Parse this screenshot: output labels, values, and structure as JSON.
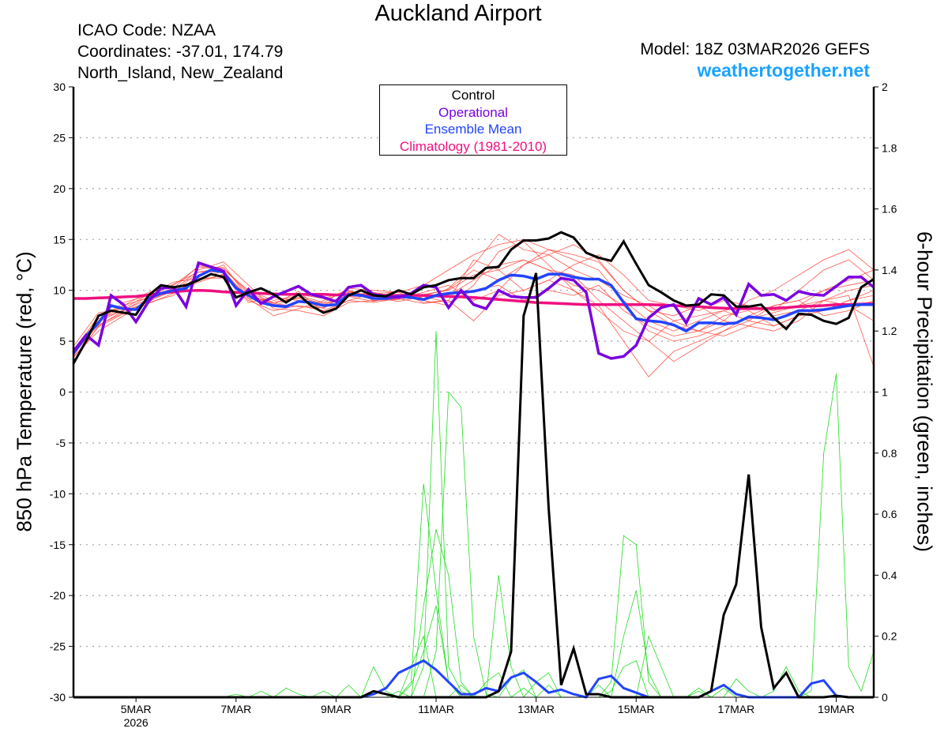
{
  "header": {
    "title": "Auckland Airport",
    "icao": "ICAO Code: NZAA",
    "coordinates": "Coordinates: -37.01, 174.79",
    "region": "North_Island, New_Zealand",
    "model": "Model: 18Z 03MAR2026 GEFS",
    "site": "weathertogether.net"
  },
  "colors": {
    "control": "#000000",
    "operational": "#7a00e0",
    "ensemble_mean": "#2244ff",
    "climatology": "#f0107f",
    "temp_members": "#ff3b30",
    "precip_members": "#22dd22",
    "site": "#1aa3ff"
  },
  "chart_data": {
    "type": "line",
    "title": "Auckland Airport",
    "xlabel": "",
    "ylabel": "850 hPa Temperature (red, °C)",
    "y2label": "6-hour Precipitation (green, inches)",
    "start": "03MAR2026 18Z",
    "step_hours": 6,
    "steps": 65,
    "ylim": [
      -30,
      30
    ],
    "y2lim": [
      0,
      2
    ],
    "yticks": [
      "30",
      "25",
      "20",
      "15",
      "10",
      "5",
      "0",
      "-5",
      "-10",
      "-15",
      "-20",
      "-25",
      "-30"
    ],
    "y2ticks": [
      "2",
      "1.8",
      "1.6",
      "1.4",
      "1.2",
      "1",
      "0.8",
      "0.6",
      "0.4",
      "0.2",
      "0"
    ],
    "xticks": [
      {
        "step": 5,
        "label": "5MAR",
        "sub": "2026"
      },
      {
        "step": 13,
        "label": "7MAR"
      },
      {
        "step": 21,
        "label": "9MAR"
      },
      {
        "step": 29,
        "label": "11MAR"
      },
      {
        "step": 37,
        "label": "13MAR"
      },
      {
        "step": 45,
        "label": "15MAR"
      },
      {
        "step": 53,
        "label": "17MAR"
      },
      {
        "step": 61,
        "label": "19MAR"
      }
    ],
    "grid": "horizontal dotted",
    "legend": {
      "placement": "top-center",
      "entries": [
        "Control",
        "Operational",
        "Ensemble Mean",
        "Climatology (1981-2010)"
      ]
    },
    "temperature": {
      "control": [
        2.8,
        5,
        7.5,
        8,
        7.8,
        7.6,
        9.5,
        10.5,
        10.3,
        10.5,
        11,
        11.6,
        11.3,
        9.3,
        9.8,
        10.2,
        9.6,
        8.8,
        9.6,
        8.5,
        7.8,
        8.2,
        9.5,
        10,
        9.5,
        9.4,
        10,
        9.6,
        10.3,
        10.5,
        11,
        11.2,
        11.2,
        12.2,
        12.3,
        14,
        14.9,
        14.9,
        15.1,
        15.7,
        15.2,
        13.7,
        13.2,
        12.9,
        14.8,
        12.6,
        10.5,
        9.8,
        9,
        8.5,
        8.6,
        9.6,
        9.5,
        8.4,
        8.4,
        8.6,
        7.3,
        6.2,
        7.7,
        7.6,
        7,
        6.7,
        7.3,
        10.3,
        11.1
      ],
      "operational": [
        4,
        5.6,
        4.6,
        9.5,
        8.6,
        6.9,
        8.9,
        10.2,
        10.3,
        8.4,
        12.7,
        12.3,
        11.9,
        8.5,
        10.1,
        8.7,
        9.4,
        9.9,
        10.4,
        9.6,
        9.3,
        8.9,
        10.3,
        10.5,
        9.6,
        9.4,
        9.3,
        9.7,
        10.5,
        10.3,
        8.3,
        10,
        8.6,
        8.2,
        10,
        9.4,
        9.3,
        9.3,
        10.2,
        11.2,
        11,
        9.8,
        3.8,
        3.3,
        3.5,
        4.6,
        7.3,
        8.3,
        8.6,
        6.8,
        9.2,
        8.6,
        9.3,
        7.6,
        10.6,
        9.5,
        9.6,
        9,
        9.9,
        9.6,
        9.5,
        10.4,
        11.3,
        11.3,
        10.3
      ],
      "ensemble_mean": [
        3.8,
        5.5,
        6.8,
        8.5,
        8.2,
        8.1,
        9.2,
        9.7,
        10,
        10.2,
        11.4,
        12,
        11.8,
        10.2,
        9.5,
        8.8,
        8.5,
        8.4,
        8.9,
        8.8,
        8.5,
        8.6,
        9.6,
        9.5,
        9.2,
        9.2,
        9.4,
        9.3,
        9.1,
        9.5,
        9.7,
        9.8,
        9.9,
        10.2,
        11,
        11.5,
        11.4,
        11.1,
        11.6,
        11.6,
        11.3,
        11.1,
        11.1,
        10.5,
        8.8,
        7.2,
        7,
        6.9,
        6.6,
        6,
        6.8,
        6.8,
        6.7,
        6.8,
        7.4,
        7.3,
        7.1,
        7.5,
        8,
        8,
        8.1,
        8.3,
        8.5,
        8.6,
        8.6
      ],
      "climatology": [
        9.2,
        9.2,
        9.25,
        9.3,
        9.35,
        9.4,
        9.55,
        9.7,
        9.85,
        9.95,
        10,
        9.95,
        9.85,
        9.8,
        9.75,
        9.7,
        9.65,
        9.6,
        9.6,
        9.6,
        9.6,
        9.55,
        9.55,
        9.5,
        9.5,
        9.5,
        9.5,
        9.5,
        9.5,
        9.45,
        9.4,
        9.35,
        9.3,
        9.2,
        9.1,
        9,
        8.9,
        8.8,
        8.75,
        8.7,
        8.65,
        8.6,
        8.6,
        8.6,
        8.6,
        8.6,
        8.6,
        8.55,
        8.5,
        8.45,
        8.4,
        8.3,
        8.25,
        8.2,
        8.2,
        8.2,
        8.25,
        8.3,
        8.4,
        8.45,
        8.5,
        8.6,
        8.6,
        8.65,
        8.7
      ],
      "members_step_hours": 12,
      "members": [
        [
          4,
          7.5,
          8.5,
          9.8,
          10.5,
          12.3,
          12,
          10,
          9,
          9.5,
          8.8,
          10.2,
          10,
          9.8,
          10.5,
          12,
          13.5,
          14.5,
          15,
          14,
          13,
          12,
          9,
          7,
          6,
          7,
          8,
          7,
          8.5,
          9,
          10,
          11,
          12
        ],
        [
          3.5,
          6,
          7.5,
          9,
          10.2,
          11,
          11.5,
          9,
          8,
          8.5,
          8,
          9,
          8.8,
          9.2,
          8.7,
          9,
          13,
          12,
          10,
          11,
          10,
          8,
          6,
          5,
          7,
          6,
          7.5,
          8,
          6.5,
          7.5,
          8,
          9,
          9.5
        ],
        [
          4.2,
          7,
          8.8,
          9.5,
          9.8,
          11.8,
          12.2,
          9.8,
          8.8,
          9.2,
          8.2,
          9.8,
          9.5,
          9.5,
          9,
          8.5,
          10.5,
          13.8,
          14.8,
          12.5,
          10,
          8.5,
          5,
          1.5,
          4,
          5,
          6,
          7.5,
          8.5,
          9,
          7.5,
          8,
          9
        ],
        [
          3,
          6.5,
          8,
          8.8,
          9.5,
          11.5,
          12.5,
          9.2,
          7.5,
          8.2,
          9,
          10,
          9,
          9.2,
          9.8,
          10.5,
          9,
          10,
          12.5,
          14,
          13.5,
          12.8,
          10,
          8,
          6.5,
          6,
          5.5,
          6.5,
          6,
          7,
          9,
          8.5,
          7
        ],
        [
          4.5,
          7.8,
          8.2,
          9.6,
          10.8,
          11.2,
          11.2,
          9.6,
          8.6,
          9.9,
          7.8,
          9,
          9.7,
          9.8,
          8.8,
          9,
          7,
          9.5,
          10,
          11,
          12.5,
          13.5,
          11.5,
          9,
          8.5,
          8,
          9,
          8.5,
          8,
          10,
          12,
          13,
          11
        ],
        [
          3.8,
          6.6,
          7.8,
          8.9,
          10,
          12,
          12.8,
          10.5,
          8.2,
          8,
          7.5,
          8.8,
          9,
          9.1,
          9.6,
          10,
          11.5,
          12,
          13,
          12,
          11.5,
          9,
          7,
          5,
          3,
          4.5,
          6,
          7,
          6.5,
          7.5,
          8,
          9,
          10
        ],
        [
          4,
          7,
          8.5,
          9.3,
          10.6,
          11.8,
          11.8,
          8.8,
          9.3,
          9,
          8.6,
          9.4,
          8.9,
          9.6,
          9,
          10.2,
          12.5,
          15.5,
          14,
          13.5,
          14.5,
          13,
          10,
          8,
          7.5,
          8.5,
          7,
          9,
          10,
          11.5,
          13,
          14,
          12
        ],
        [
          3.6,
          6.9,
          8.1,
          9.1,
          9.9,
          10.8,
          11.6,
          9.4,
          8.4,
          9.6,
          9.2,
          10,
          9.3,
          8.9,
          9.4,
          8.8,
          10,
          10.5,
          9,
          10,
          9.5,
          10.5,
          8,
          6.5,
          5.5,
          6,
          7,
          6.5,
          7.5,
          8,
          9,
          9.5,
          2.5
        ],
        [
          4,
          7.2,
          8,
          9.4,
          10.2,
          12.4,
          12.2,
          9.6,
          8.7,
          8.4,
          8.3,
          9.9,
          9.2,
          10,
          9.2,
          9.5,
          11,
          12.5,
          13,
          12,
          10.5,
          10,
          8.5,
          6,
          5,
          5.5,
          6.5,
          7.2,
          7.8,
          8.5,
          9,
          10,
          10.5
        ],
        [
          3.4,
          6.4,
          7.7,
          8.7,
          9.7,
          11.1,
          11.9,
          9.2,
          8.8,
          9.3,
          8.7,
          9.5,
          9.8,
          9.3,
          9.5,
          10.1,
          12,
          11,
          12.5,
          13.5,
          12,
          11,
          9.5,
          8.5,
          7,
          7.5,
          8,
          8.5,
          8,
          8.5,
          10,
          10.5,
          11
        ]
      ]
    },
    "precipitation": {
      "control_nonzero": [
        [
          24,
          0.02
        ],
        [
          25,
          0.01
        ],
        [
          34,
          0.02
        ],
        [
          35,
          0.15
        ],
        [
          36,
          1.25
        ],
        [
          37,
          1.39
        ],
        [
          38,
          0.62
        ],
        [
          39,
          0.04
        ],
        [
          40,
          0.16
        ],
        [
          41,
          0.01
        ],
        [
          42,
          0.01
        ],
        [
          51,
          0.02
        ],
        [
          52,
          0.27
        ],
        [
          53,
          0.37
        ],
        [
          54,
          0.73
        ],
        [
          55,
          0.23
        ],
        [
          56,
          0.03
        ],
        [
          57,
          0.08
        ],
        [
          61,
          0.005
        ]
      ],
      "mean_nonzero": [
        [
          24,
          0.01
        ],
        [
          25,
          0.03
        ],
        [
          26,
          0.08
        ],
        [
          27,
          0.1
        ],
        [
          28,
          0.12
        ],
        [
          29,
          0.09
        ],
        [
          30,
          0.05
        ],
        [
          31,
          0.01
        ],
        [
          32,
          0.01
        ],
        [
          33,
          0.03
        ],
        [
          34,
          0.02
        ],
        [
          35,
          0.065
        ],
        [
          36,
          0.08
        ],
        [
          37,
          0.05
        ],
        [
          38,
          0.015
        ],
        [
          39,
          0.025
        ],
        [
          40,
          0.01
        ],
        [
          42,
          0.06
        ],
        [
          43,
          0.07
        ],
        [
          44,
          0.03
        ],
        [
          45,
          0.015
        ],
        [
          51,
          0.02
        ],
        [
          52,
          0.04
        ],
        [
          53,
          0.01
        ],
        [
          59,
          0.045
        ],
        [
          60,
          0.055
        ],
        [
          61,
          0.005
        ]
      ],
      "members_nonzero": [
        [
          [
            26,
            0.02
          ],
          [
            28,
            0.1
          ],
          [
            29,
            1.2
          ],
          [
            30,
            0.1
          ],
          [
            31,
            0.02
          ]
        ],
        [
          [
            29,
            0.15
          ],
          [
            30,
            1.0
          ],
          [
            31,
            0.95
          ],
          [
            32,
            0.2
          ],
          [
            33,
            0.01
          ]
        ],
        [
          [
            27,
            0.05
          ],
          [
            28,
            0.7
          ],
          [
            29,
            0.35
          ],
          [
            30,
            0.05
          ]
        ],
        [
          [
            28,
            0.3
          ],
          [
            29,
            0.55
          ],
          [
            30,
            0.4
          ],
          [
            31,
            0.05
          ],
          [
            34,
            0.4
          ],
          [
            35,
            0.1
          ]
        ],
        [
          [
            20,
            0.02
          ],
          [
            22,
            0.04
          ],
          [
            24,
            0.1
          ],
          [
            25,
            0.02
          ],
          [
            37,
            0.05
          ],
          [
            38,
            0.08
          ],
          [
            43,
            0.05
          ],
          [
            44,
            0.53
          ],
          [
            45,
            0.5
          ],
          [
            46,
            0.05
          ]
        ],
        [
          [
            13,
            0.01
          ],
          [
            15,
            0.02
          ],
          [
            17,
            0.03
          ],
          [
            18,
            0.01
          ],
          [
            27,
            0.1
          ],
          [
            28,
            0.2
          ],
          [
            33,
            0.05
          ],
          [
            34,
            0.08
          ],
          [
            44,
            0.2
          ],
          [
            45,
            0.35
          ],
          [
            46,
            0.08
          ],
          [
            50,
            0.02
          ],
          [
            59,
            0.02
          ],
          [
            60,
            0.8
          ],
          [
            61,
            1.06
          ],
          [
            62,
            0.1
          ],
          [
            63,
            0.02
          ],
          [
            64,
            0.15
          ]
        ],
        [
          [
            31,
            0.04
          ],
          [
            35,
            0.06
          ],
          [
            36,
            0.09
          ],
          [
            38,
            0.04
          ],
          [
            42,
            0.04
          ],
          [
            46,
            0.2
          ],
          [
            47,
            0.1
          ],
          [
            52,
            0.03
          ],
          [
            56,
            0.02
          ],
          [
            57,
            0.1
          ],
          [
            58,
            0.02
          ]
        ],
        [
          [
            27,
            0.04
          ],
          [
            28,
            0.15
          ],
          [
            29,
            0.3
          ],
          [
            30,
            0.05
          ],
          [
            36,
            0.03
          ],
          [
            43,
            0.02
          ],
          [
            44,
            0.1
          ],
          [
            45,
            0.12
          ],
          [
            50,
            0.03
          ],
          [
            53,
            0.06
          ],
          [
            54,
            0.02
          ]
        ]
      ]
    }
  }
}
